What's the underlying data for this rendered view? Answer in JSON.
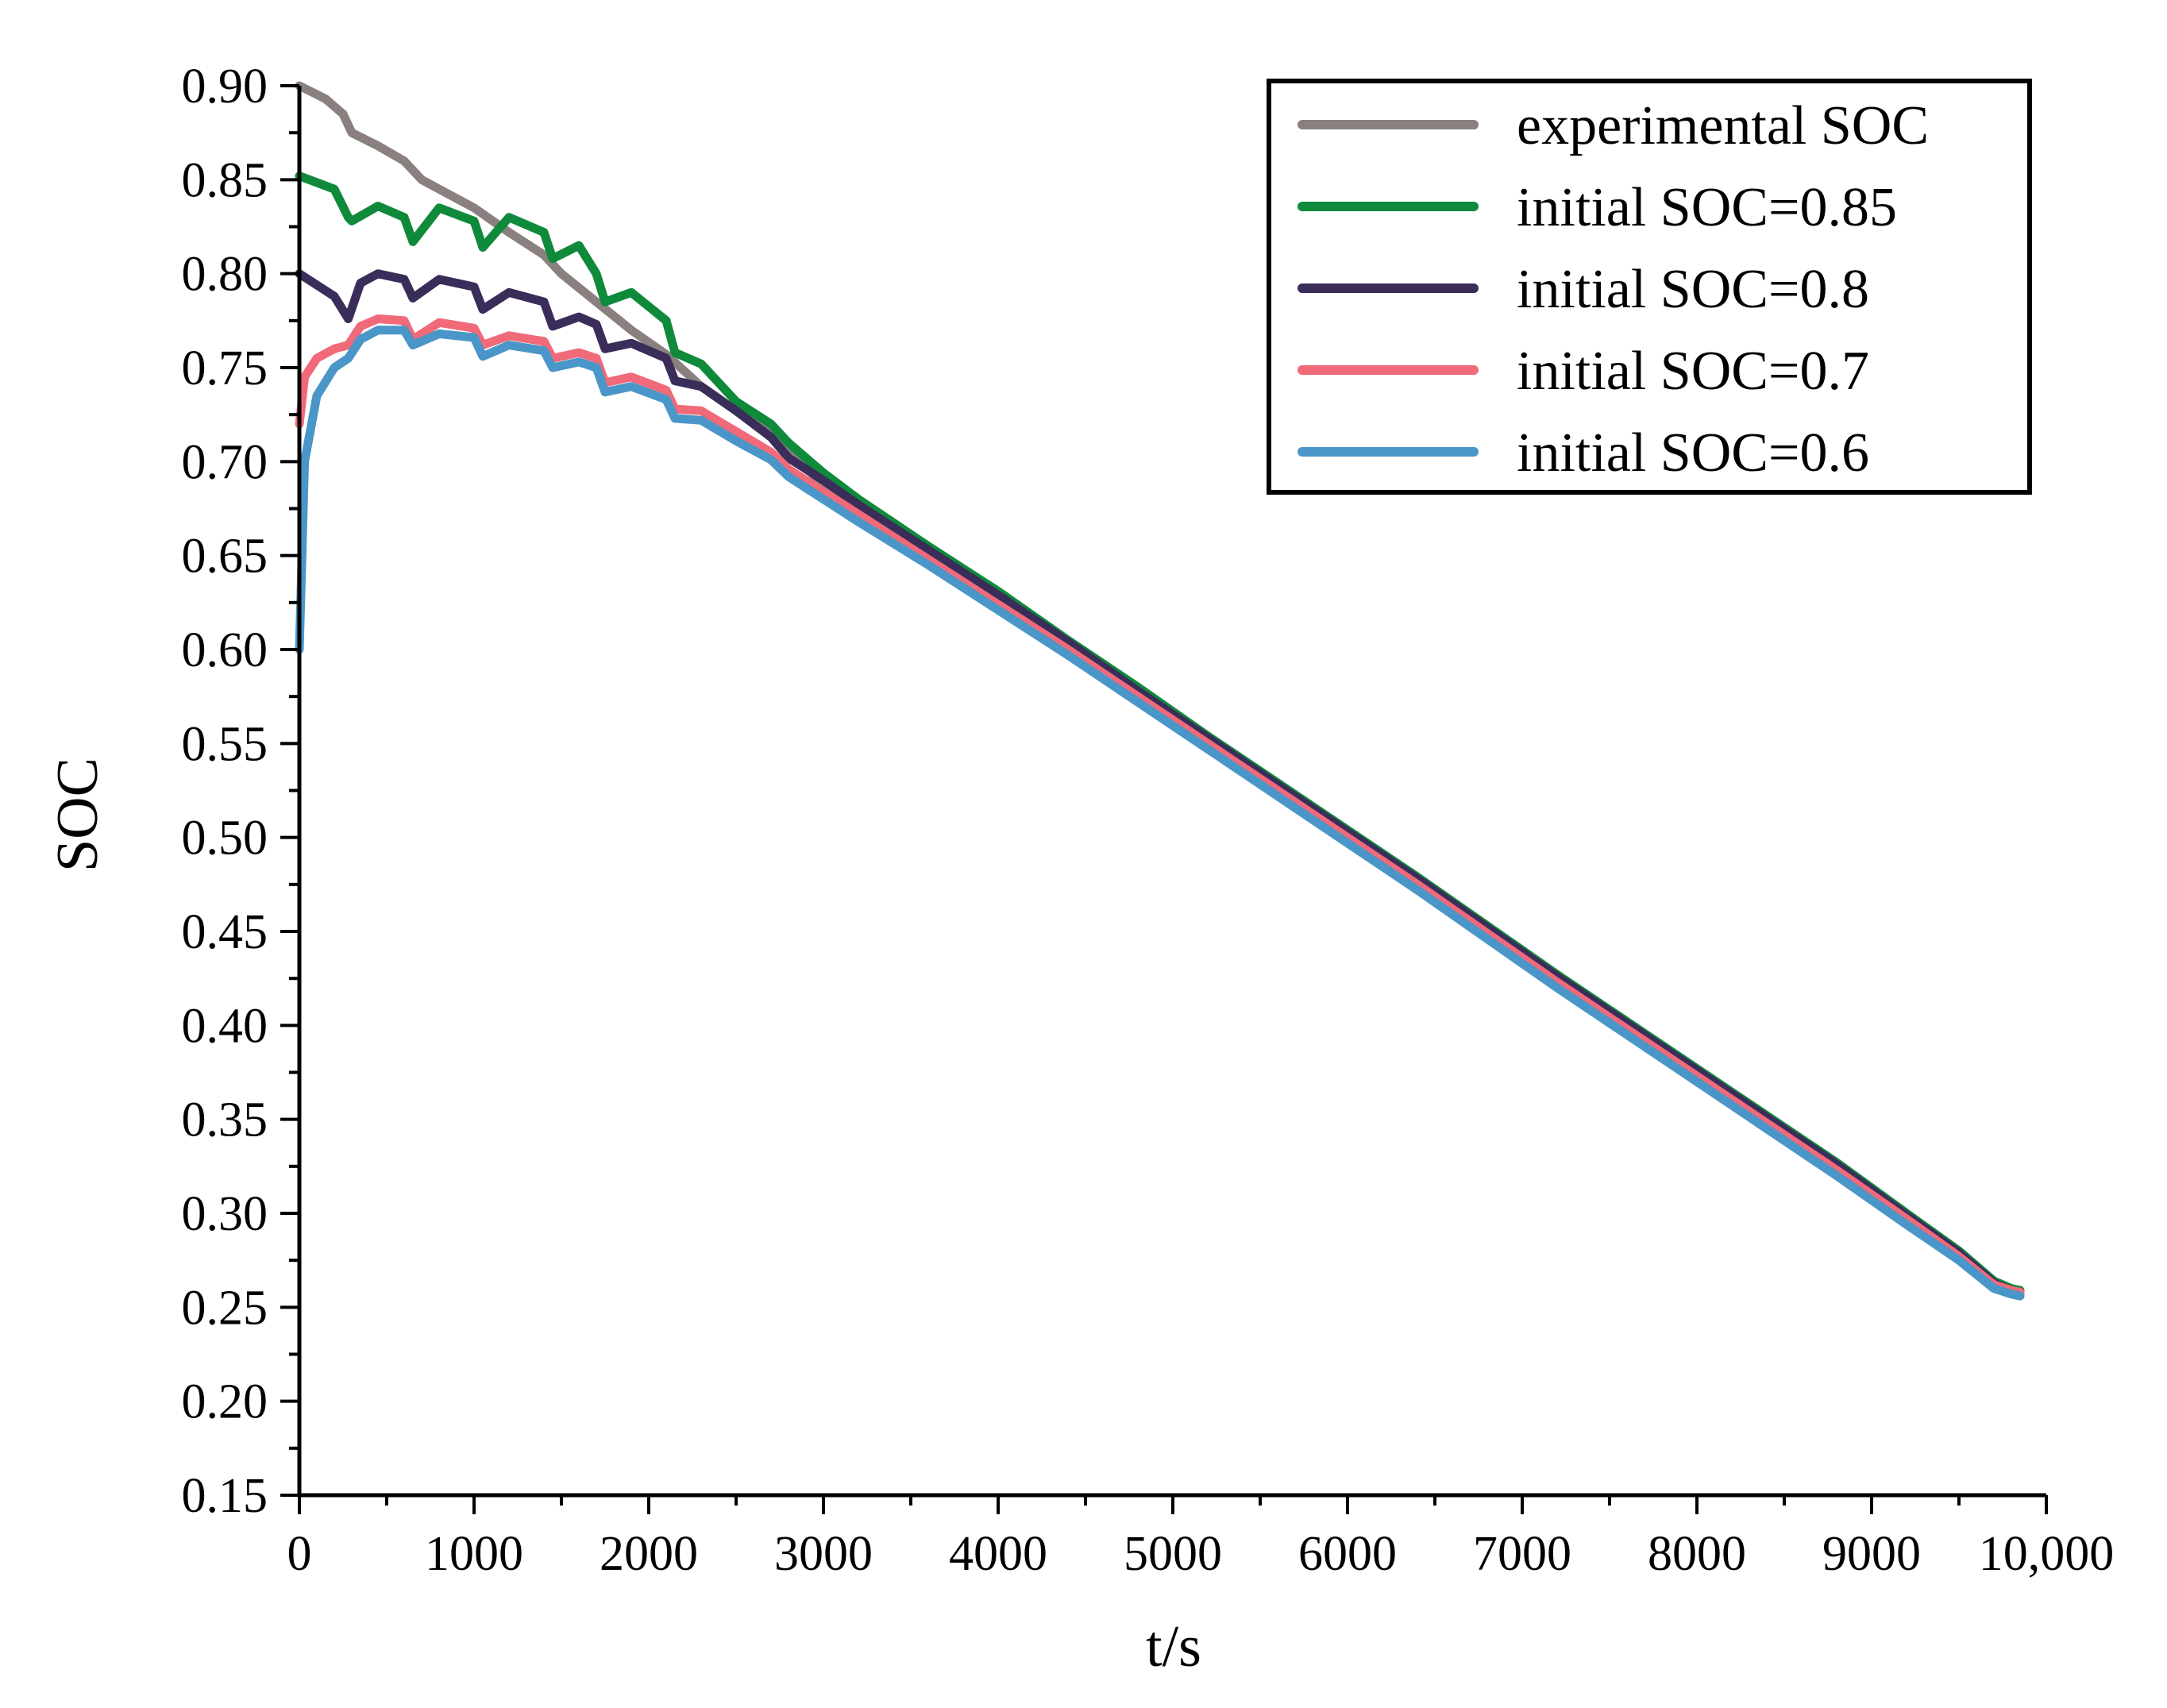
{
  "chart_data": {
    "type": "line",
    "title": "",
    "xlabel": "t/s",
    "ylabel": "SOC",
    "xlim": [
      0,
      10000
    ],
    "ylim": [
      0.15,
      0.9
    ],
    "xticks": [
      0,
      1000,
      2000,
      3000,
      4000,
      5000,
      6000,
      7000,
      8000,
      9000,
      10000
    ],
    "xtick_labels": [
      "0",
      "1000",
      "2000",
      "3000",
      "4000",
      "5000",
      "6000",
      "7000",
      "8000",
      "9000",
      "10,000"
    ],
    "yticks": [
      0.15,
      0.2,
      0.25,
      0.3,
      0.35,
      0.4,
      0.45,
      0.5,
      0.55,
      0.6,
      0.65,
      0.7,
      0.75,
      0.8,
      0.85,
      0.9
    ],
    "ytick_labels": [
      "0.15",
      "0.20",
      "0.25",
      "0.30",
      "0.35",
      "0.40",
      "0.45",
      "0.50",
      "0.55",
      "0.60",
      "0.65",
      "0.70",
      "0.75",
      "0.80",
      "0.85",
      "0.90"
    ],
    "grid": false,
    "legend_position": "top-right",
    "series": [
      {
        "name": "experimental SOC",
        "color": "#8a8080",
        "x": [
          0,
          150,
          250,
          300,
          450,
          600,
          700,
          800,
          1000,
          1200,
          1400,
          1500,
          1700,
          1900,
          2100,
          2300,
          2500,
          2700,
          2800,
          3000,
          3200,
          3600,
          4000,
          4400,
          4800,
          5200,
          5600,
          6000,
          6400,
          6800,
          7200,
          7600,
          8000,
          8400,
          8800,
          9200,
          9500,
          9700,
          9800,
          9850
        ],
        "y": [
          0.9,
          0.893,
          0.885,
          0.875,
          0.868,
          0.86,
          0.85,
          0.845,
          0.835,
          0.822,
          0.81,
          0.8,
          0.785,
          0.77,
          0.757,
          0.74,
          0.727,
          0.715,
          0.705,
          0.688,
          0.675,
          0.652,
          0.628,
          0.603,
          0.578,
          0.552,
          0.527,
          0.502,
          0.477,
          0.452,
          0.425,
          0.4,
          0.375,
          0.35,
          0.325,
          0.298,
          0.278,
          0.262,
          0.258,
          0.257
        ]
      },
      {
        "name": "initial SOC=0.85",
        "color": "#0e8a3a",
        "x": [
          0,
          200,
          280,
          300,
          450,
          600,
          650,
          800,
          1000,
          1050,
          1200,
          1400,
          1450,
          1600,
          1700,
          1750,
          1900,
          2100,
          2150,
          2300,
          2500,
          2700,
          2800,
          3000,
          3200,
          3600,
          4000,
          4400,
          4800,
          5200,
          5600,
          6000,
          6400,
          6800,
          7200,
          7600,
          8000,
          8400,
          8800,
          9200,
          9500,
          9700,
          9800,
          9850
        ],
        "y": [
          0.852,
          0.845,
          0.83,
          0.828,
          0.836,
          0.83,
          0.817,
          0.835,
          0.828,
          0.814,
          0.83,
          0.822,
          0.808,
          0.815,
          0.8,
          0.785,
          0.79,
          0.775,
          0.758,
          0.752,
          0.732,
          0.72,
          0.71,
          0.694,
          0.68,
          0.655,
          0.631,
          0.605,
          0.58,
          0.554,
          0.529,
          0.504,
          0.479,
          0.453,
          0.427,
          0.402,
          0.377,
          0.352,
          0.327,
          0.3,
          0.28,
          0.264,
          0.26,
          0.259
        ]
      },
      {
        "name": "initial SOC=0.8",
        "color": "#3a2d5a",
        "x": [
          0,
          200,
          280,
          350,
          450,
          600,
          650,
          800,
          1000,
          1050,
          1200,
          1400,
          1450,
          1600,
          1700,
          1750,
          1900,
          2100,
          2150,
          2300,
          2500,
          2700,
          2800,
          3000,
          3200,
          3600,
          4000,
          4400,
          4800,
          5200,
          5600,
          6000,
          6400,
          6800,
          7200,
          7600,
          8000,
          8400,
          8800,
          9200,
          9500,
          9700,
          9800,
          9850
        ],
        "y": [
          0.8,
          0.788,
          0.776,
          0.795,
          0.8,
          0.797,
          0.787,
          0.797,
          0.793,
          0.781,
          0.79,
          0.785,
          0.772,
          0.777,
          0.773,
          0.76,
          0.763,
          0.755,
          0.743,
          0.74,
          0.727,
          0.713,
          0.702,
          0.69,
          0.677,
          0.653,
          0.629,
          0.604,
          0.578,
          0.553,
          0.528,
          0.503,
          0.478,
          0.452,
          0.426,
          0.401,
          0.376,
          0.351,
          0.326,
          0.299,
          0.279,
          0.263,
          0.259,
          0.258
        ]
      },
      {
        "name": "initial SOC=0.7",
        "color": "#f06a7a",
        "x": [
          0,
          30,
          100,
          200,
          280,
          350,
          450,
          600,
          650,
          800,
          1000,
          1050,
          1200,
          1400,
          1450,
          1600,
          1700,
          1750,
          1900,
          2100,
          2150,
          2300,
          2500,
          2700,
          2800,
          3000,
          3200,
          3600,
          4000,
          4400,
          4800,
          5200,
          5600,
          6000,
          6400,
          6800,
          7200,
          7600,
          8000,
          8400,
          8800,
          9200,
          9500,
          9700,
          9800,
          9850
        ],
        "y": [
          0.72,
          0.745,
          0.755,
          0.76,
          0.762,
          0.772,
          0.776,
          0.775,
          0.765,
          0.774,
          0.771,
          0.762,
          0.767,
          0.764,
          0.755,
          0.758,
          0.755,
          0.742,
          0.745,
          0.738,
          0.728,
          0.727,
          0.716,
          0.705,
          0.696,
          0.684,
          0.672,
          0.648,
          0.624,
          0.6,
          0.575,
          0.55,
          0.525,
          0.5,
          0.475,
          0.449,
          0.423,
          0.398,
          0.373,
          0.348,
          0.323,
          0.297,
          0.277,
          0.262,
          0.259,
          0.258
        ]
      },
      {
        "name": "initial SOC=0.6",
        "color": "#4a96c8",
        "x": [
          0,
          30,
          100,
          200,
          280,
          350,
          450,
          600,
          650,
          800,
          1000,
          1050,
          1200,
          1400,
          1450,
          1600,
          1700,
          1750,
          1900,
          2100,
          2150,
          2300,
          2500,
          2700,
          2800,
          3000,
          3200,
          3600,
          4000,
          4400,
          4800,
          5200,
          5600,
          6000,
          6400,
          6800,
          7200,
          7600,
          8000,
          8400,
          8800,
          9200,
          9500,
          9700,
          9800,
          9850
        ],
        "y": [
          0.6,
          0.7,
          0.735,
          0.75,
          0.755,
          0.765,
          0.77,
          0.77,
          0.762,
          0.768,
          0.766,
          0.756,
          0.762,
          0.759,
          0.75,
          0.753,
          0.75,
          0.737,
          0.74,
          0.733,
          0.723,
          0.722,
          0.711,
          0.701,
          0.692,
          0.68,
          0.668,
          0.645,
          0.621,
          0.597,
          0.572,
          0.547,
          0.522,
          0.497,
          0.472,
          0.446,
          0.42,
          0.395,
          0.37,
          0.345,
          0.32,
          0.294,
          0.275,
          0.26,
          0.257,
          0.256
        ]
      }
    ]
  }
}
